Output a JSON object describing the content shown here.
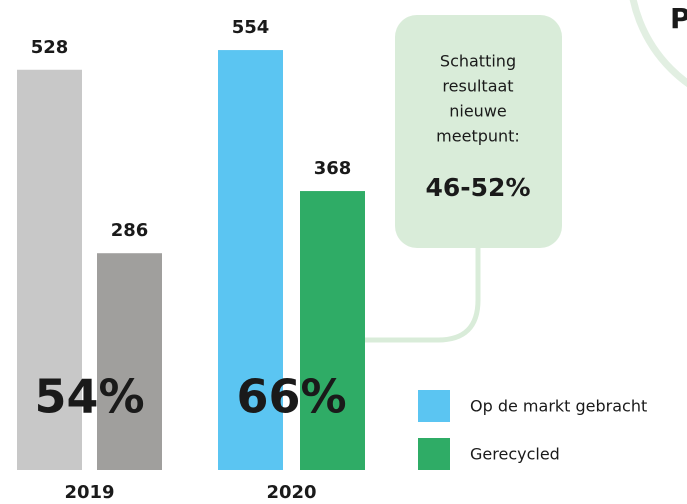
{
  "chart_data": {
    "type": "grouped-bar",
    "corner_text": "P",
    "groups": [
      {
        "label": "2019",
        "rate_label": "54%",
        "bars": [
          {
            "value": 528,
            "color": "#c8c8c8"
          },
          {
            "value": 286,
            "color": "#a09f9d"
          }
        ]
      },
      {
        "label": "2020",
        "rate_label": "66%",
        "bars": [
          {
            "value": 554,
            "color": "#5bc5f2"
          },
          {
            "value": 368,
            "color": "#2fac66"
          }
        ]
      }
    ],
    "callout": {
      "lines": [
        "Schatting",
        "resultaat",
        "nieuwe",
        "meetpunt:"
      ],
      "value_text": "46-52%"
    },
    "legend": [
      {
        "name": "Op de markt gebracht",
        "color": "#5bc5f2"
      },
      {
        "name": "Gerecycled",
        "color": "#2fac66"
      }
    ]
  }
}
